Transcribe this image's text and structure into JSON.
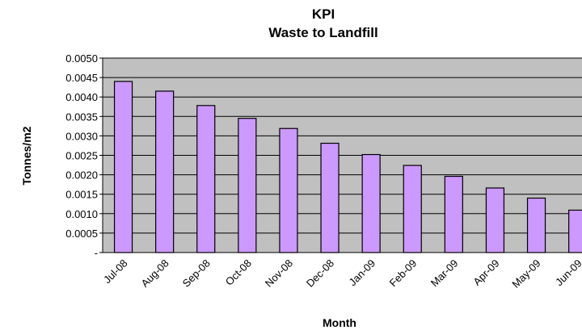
{
  "chart_data": {
    "type": "bar",
    "title": "KPI",
    "subtitle": "Waste to Landfill",
    "x_label": "Month",
    "y_label": "Tonnes/m2",
    "categories": [
      "Jul-08",
      "Aug-08",
      "Sep-08",
      "Oct-08",
      "Nov-08",
      "Dec-08",
      "Jan-09",
      "Feb-09",
      "Mar-09",
      "Apr-09",
      "May-09",
      "Jun-09"
    ],
    "values": [
      0.0044,
      0.00415,
      0.00378,
      0.00345,
      0.00319,
      0.00281,
      0.00252,
      0.00224,
      0.00196,
      0.00166,
      0.0014,
      0.00109
    ],
    "color": "#cc99ff",
    "ylim": [
      0,
      0.005
    ],
    "yticks": [
      {
        "value": 0,
        "label": "-"
      },
      {
        "value": 0.0005,
        "label": "0.0005"
      },
      {
        "value": 0.001,
        "label": "0.0010"
      },
      {
        "value": 0.0015,
        "label": "0.0015"
      },
      {
        "value": 0.002,
        "label": "0.0020"
      },
      {
        "value": 0.0025,
        "label": "0.0025"
      },
      {
        "value": 0.003,
        "label": "0.0030"
      },
      {
        "value": 0.0035,
        "label": "0.0035"
      },
      {
        "value": 0.004,
        "label": "0.0040"
      },
      {
        "value": 0.0045,
        "label": "0.0045"
      },
      {
        "value": 0.005,
        "label": "0.0050"
      }
    ],
    "grid": true
  }
}
